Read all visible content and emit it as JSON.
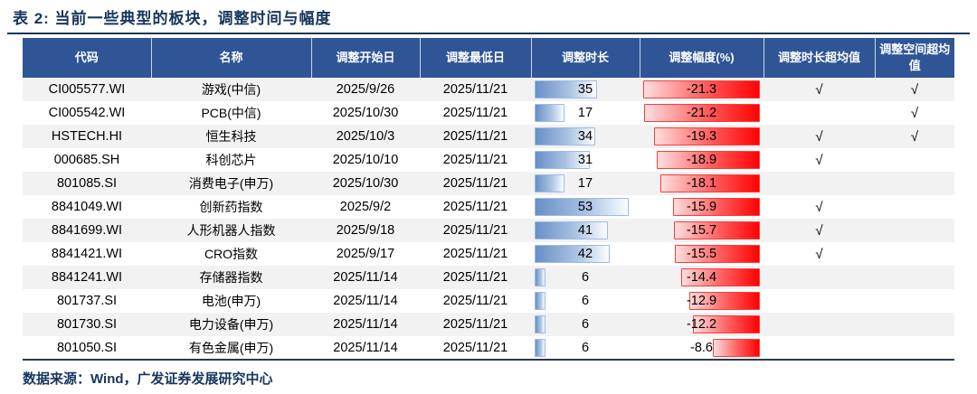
{
  "title": "表 2:  当前一些典型的板块，调整时间与幅度",
  "source_note": "数据来源：Wind，广发证券发展研究中心",
  "colors": {
    "title_text": "#17365D",
    "header_bg": "#2F5597",
    "header_text": "#FFFFFF",
    "row_stripe": "#F2F2F2",
    "duration_bar_blue": "#6790C6",
    "magnitude_bar_red": "#FE0202",
    "bar_blue_border": "#9FBBE0",
    "bar_red_border": "#FF3B3B"
  },
  "table": {
    "columns": [
      "代码",
      "名称",
      "调整开始日",
      "调整最低日",
      "调整时长",
      "调整幅度(%)",
      "调整时长超均值",
      "调整空间超均值"
    ],
    "duration_bar_max": 53,
    "magnitude_bar_max": 21.3,
    "check_glyph": "√",
    "rows": [
      {
        "code": "CI005577.WI",
        "name": "游戏(中信)",
        "start_date": "2025/9/26",
        "low_date": "2025/11/21",
        "duration": 35,
        "magnitude": -21.3,
        "duration_over_mean": "√",
        "space_over_mean": "√"
      },
      {
        "code": "CI005542.WI",
        "name": "PCB(中信)",
        "start_date": "2025/10/30",
        "low_date": "2025/11/21",
        "duration": 17,
        "magnitude": -21.2,
        "duration_over_mean": "",
        "space_over_mean": "√"
      },
      {
        "code": "HSTECH.HI",
        "name": "恒生科技",
        "start_date": "2025/10/3",
        "low_date": "2025/11/21",
        "duration": 34,
        "magnitude": -19.3,
        "duration_over_mean": "√",
        "space_over_mean": "√"
      },
      {
        "code": "000685.SH",
        "name": "科创芯片",
        "start_date": "2025/10/10",
        "low_date": "2025/11/21",
        "duration": 31,
        "magnitude": -18.9,
        "duration_over_mean": "√",
        "space_over_mean": ""
      },
      {
        "code": "801085.SI",
        "name": "消费电子(申万)",
        "start_date": "2025/10/30",
        "low_date": "2025/11/21",
        "duration": 17,
        "magnitude": -18.1,
        "duration_over_mean": "",
        "space_over_mean": ""
      },
      {
        "code": "8841049.WI",
        "name": "创新药指数",
        "start_date": "2025/9/2",
        "low_date": "2025/11/21",
        "duration": 53,
        "magnitude": -15.9,
        "duration_over_mean": "√",
        "space_over_mean": ""
      },
      {
        "code": "8841699.WI",
        "name": "人形机器人指数",
        "start_date": "2025/9/18",
        "low_date": "2025/11/21",
        "duration": 41,
        "magnitude": -15.7,
        "duration_over_mean": "√",
        "space_over_mean": ""
      },
      {
        "code": "8841421.WI",
        "name": "CRO指数",
        "start_date": "2025/9/17",
        "low_date": "2025/11/21",
        "duration": 42,
        "magnitude": -15.5,
        "duration_over_mean": "√",
        "space_over_mean": ""
      },
      {
        "code": "8841241.WI",
        "name": "存储器指数",
        "start_date": "2025/11/14",
        "low_date": "2025/11/21",
        "duration": 6,
        "magnitude": -14.4,
        "duration_over_mean": "",
        "space_over_mean": ""
      },
      {
        "code": "801737.SI",
        "name": "电池(申万)",
        "start_date": "2025/11/14",
        "low_date": "2025/11/21",
        "duration": 6,
        "magnitude": -12.9,
        "duration_over_mean": "",
        "space_over_mean": ""
      },
      {
        "code": "801730.SI",
        "name": "电力设备(申万)",
        "start_date": "2025/11/14",
        "low_date": "2025/11/21",
        "duration": 6,
        "magnitude": -12.2,
        "duration_over_mean": "",
        "space_over_mean": ""
      },
      {
        "code": "801050.SI",
        "name": "有色金属(申万)",
        "start_date": "2025/11/14",
        "low_date": "2025/11/21",
        "duration": 6,
        "magnitude": -8.6,
        "duration_over_mean": "",
        "space_over_mean": ""
      }
    ]
  },
  "chart_data": {
    "type": "table",
    "title": "表 2:  当前一些典型的板块，调整时间与幅度",
    "columns": [
      "代码",
      "名称",
      "调整开始日",
      "调整最低日",
      "调整时长",
      "调整幅度(%)",
      "调整时长超均值",
      "调整空间超均值"
    ],
    "categories": [
      "游戏(中信)",
      "PCB(中信)",
      "恒生科技",
      "科创芯片",
      "消费电子(申万)",
      "创新药指数",
      "人形机器人指数",
      "CRO指数",
      "存储器指数",
      "电池(申万)",
      "电力设备(申万)",
      "有色金属(申万)"
    ],
    "series": [
      {
        "name": "调整时长",
        "values": [
          35,
          17,
          34,
          31,
          17,
          53,
          41,
          42,
          6,
          6,
          6,
          6
        ]
      },
      {
        "name": "调整幅度(%)",
        "values": [
          -21.3,
          -21.2,
          -19.3,
          -18.9,
          -18.1,
          -15.9,
          -15.7,
          -15.5,
          -14.4,
          -12.9,
          -12.2,
          -8.6
        ]
      }
    ]
  }
}
